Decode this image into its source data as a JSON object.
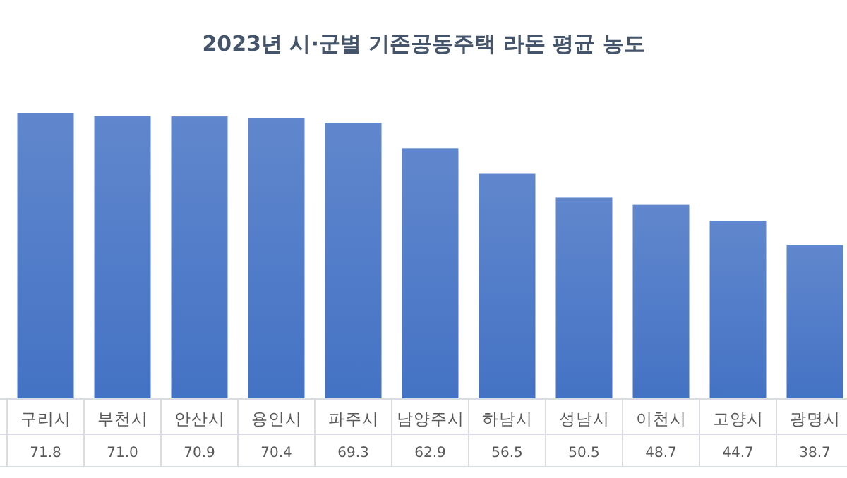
{
  "chart_data": {
    "type": "bar",
    "title": "2023년 시·군별 기존공동주택 라돈 평균 농도",
    "categories": [
      "구리시",
      "부천시",
      "안산시",
      "용인시",
      "파주시",
      "남양주시",
      "하남시",
      "성남시",
      "이천시",
      "고양시",
      "광명시"
    ],
    "values": [
      71.8,
      71.0,
      70.9,
      70.4,
      69.3,
      62.9,
      56.5,
      50.5,
      48.7,
      44.7,
      38.7
    ],
    "value_labels": [
      "71.8",
      "71.0",
      "70.9",
      "70.4",
      "69.3",
      "62.9",
      "56.5",
      "50.5",
      "48.7",
      "44.7",
      "38.7"
    ],
    "color": "#4472c4"
  }
}
